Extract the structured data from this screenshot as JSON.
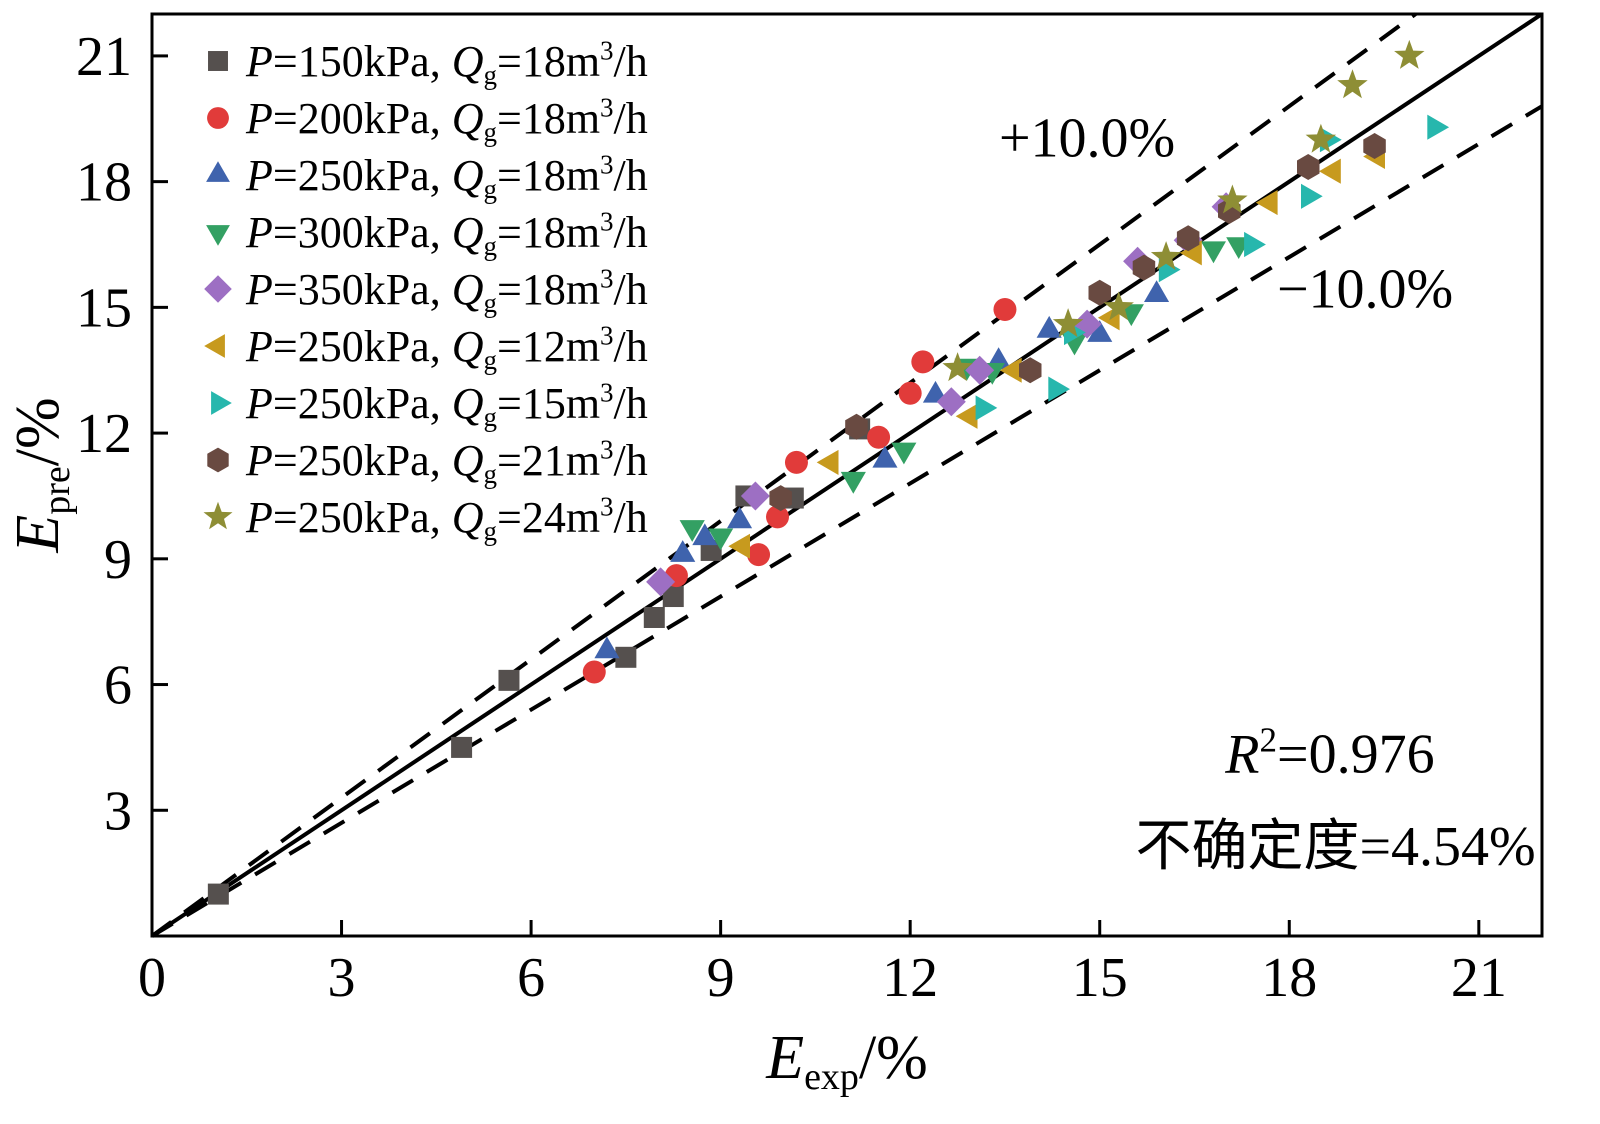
{
  "chart_data": {
    "type": "scatter",
    "title": "",
    "xlabel": {
      "text": "Eexp/%",
      "parts": [
        {
          "t": "E",
          "italic": true
        },
        {
          "t": "exp",
          "sub": true
        },
        {
          "t": "/%"
        }
      ]
    },
    "ylabel": {
      "text": "Epre/%",
      "parts": [
        {
          "t": "E",
          "italic": true
        },
        {
          "t": "pre",
          "sub": true
        },
        {
          "t": "/%"
        }
      ]
    },
    "xlim": [
      0,
      22
    ],
    "ylim": [
      0,
      22
    ],
    "ticks": [
      0,
      3,
      6,
      9,
      12,
      15,
      18,
      21
    ],
    "grid": false,
    "legend_position": "top-left-inside",
    "reference_lines": [
      {
        "label": "y=x",
        "slope": 1.0,
        "style": "solid"
      },
      {
        "label": "+10%",
        "slope": 1.1,
        "style": "dashed"
      },
      {
        "label": "-10%",
        "slope": 0.9,
        "style": "dashed"
      }
    ],
    "annotations": [
      {
        "text": "+10.0%",
        "x": 14.8,
        "y": 18.6,
        "anchor": "middle",
        "parts": [
          {
            "t": "+10.0%"
          }
        ]
      },
      {
        "text": "−10.0%",
        "x": 19.2,
        "y": 15.0,
        "anchor": "middle",
        "parts": [
          {
            "t": "−10.0%"
          }
        ]
      },
      {
        "text": "R2=0.976",
        "x": 20.3,
        "y": 3.9,
        "anchor": "end",
        "parts": [
          {
            "t": "R",
            "italic": true
          },
          {
            "t": "2",
            "super": true
          },
          {
            "t": "=0.976"
          }
        ]
      },
      {
        "text": "不确定度=4.54%",
        "x": 21.9,
        "y": 1.7,
        "anchor": "end",
        "parts": [
          {
            "t": "不确定度=4.54%"
          }
        ]
      }
    ],
    "series": [
      {
        "name": "P=150kPa, Qg=18m³/h",
        "marker": "square",
        "color": "#55504e",
        "label_parts": [
          {
            "t": "P",
            "italic": true
          },
          {
            "t": "=150kPa, "
          },
          {
            "t": "Q",
            "italic": true
          },
          {
            "t": "g",
            "sub": true
          },
          {
            "t": "=18m"
          },
          {
            "t": "3",
            "super": true
          },
          {
            "t": "/h"
          }
        ],
        "points": [
          [
            1.05,
            1.0
          ],
          [
            4.9,
            4.5
          ],
          [
            5.65,
            6.1
          ],
          [
            7.5,
            6.65
          ],
          [
            7.95,
            7.6
          ],
          [
            8.25,
            8.1
          ],
          [
            8.85,
            9.2
          ],
          [
            9.4,
            10.5
          ],
          [
            10.15,
            10.45
          ],
          [
            11.2,
            12.1
          ]
        ]
      },
      {
        "name": "P=200kPa, Qg=18m³/h",
        "marker": "circle",
        "color": "#e13b3a",
        "label_parts": [
          {
            "t": "P",
            "italic": true
          },
          {
            "t": "=200kPa, "
          },
          {
            "t": "Q",
            "italic": true
          },
          {
            "t": "g",
            "sub": true
          },
          {
            "t": "=18m"
          },
          {
            "t": "3",
            "super": true
          },
          {
            "t": "/h"
          }
        ],
        "points": [
          [
            7.0,
            6.3
          ],
          [
            8.3,
            8.6
          ],
          [
            9.6,
            9.1
          ],
          [
            9.9,
            10.0
          ],
          [
            10.2,
            11.3
          ],
          [
            11.5,
            11.9
          ],
          [
            12.0,
            12.95
          ],
          [
            12.2,
            13.7
          ],
          [
            13.5,
            14.95
          ]
        ]
      },
      {
        "name": "P=250kPa, Qg=18m³/h",
        "marker": "triangle-up",
        "color": "#3f63ad",
        "label_parts": [
          {
            "t": "P",
            "italic": true
          },
          {
            "t": "=250kPa, "
          },
          {
            "t": "Q",
            "italic": true
          },
          {
            "t": "g",
            "sub": true
          },
          {
            "t": "=18m"
          },
          {
            "t": "3",
            "super": true
          },
          {
            "t": "/h"
          }
        ],
        "points": [
          [
            7.2,
            6.8
          ],
          [
            8.4,
            9.1
          ],
          [
            8.75,
            9.5
          ],
          [
            9.3,
            9.9
          ],
          [
            11.6,
            11.35
          ],
          [
            12.4,
            12.9
          ],
          [
            13.4,
            13.7
          ],
          [
            14.2,
            14.45
          ],
          [
            15.0,
            14.35
          ],
          [
            15.9,
            15.3
          ]
        ]
      },
      {
        "name": "P=300kPa, Qg=18m³/h",
        "marker": "triangle-down",
        "color": "#33a063",
        "label_parts": [
          {
            "t": "P",
            "italic": true
          },
          {
            "t": "=300kPa, "
          },
          {
            "t": "Q",
            "italic": true
          },
          {
            "t": "g",
            "sub": true
          },
          {
            "t": "=18m"
          },
          {
            "t": "3",
            "super": true
          },
          {
            "t": "/h"
          }
        ],
        "points": [
          [
            8.55,
            9.75
          ],
          [
            9.0,
            9.55
          ],
          [
            11.1,
            10.9
          ],
          [
            11.9,
            11.6
          ],
          [
            12.9,
            13.6
          ],
          [
            13.3,
            13.5
          ],
          [
            14.6,
            14.2
          ],
          [
            15.5,
            14.9
          ],
          [
            16.8,
            16.4
          ],
          [
            17.2,
            16.5
          ]
        ]
      },
      {
        "name": "P=350kPa, Qg=18m³/h",
        "marker": "diamond",
        "color": "#9d6fc3",
        "label_parts": [
          {
            "t": "P",
            "italic": true
          },
          {
            "t": "=350kPa, "
          },
          {
            "t": "Q",
            "italic": true
          },
          {
            "t": "g",
            "sub": true
          },
          {
            "t": "=18m"
          },
          {
            "t": "3",
            "super": true
          },
          {
            "t": "/h"
          }
        ],
        "points": [
          [
            8.05,
            8.45
          ],
          [
            9.55,
            10.5
          ],
          [
            12.65,
            12.75
          ],
          [
            13.1,
            13.5
          ],
          [
            14.8,
            14.6
          ],
          [
            15.6,
            16.1
          ],
          [
            16.4,
            16.6
          ],
          [
            17.0,
            17.4
          ]
        ]
      },
      {
        "name": "P=250kPa, Qg=12m³/h",
        "marker": "triangle-left",
        "color": "#c79a1e",
        "label_parts": [
          {
            "t": "P",
            "italic": true
          },
          {
            "t": "=250kPa, "
          },
          {
            "t": "Q",
            "italic": true
          },
          {
            "t": "g",
            "sub": true
          },
          {
            "t": "=12m"
          },
          {
            "t": "3",
            "super": true
          },
          {
            "t": "/h"
          }
        ],
        "points": [
          [
            9.35,
            9.3
          ],
          [
            10.75,
            11.3
          ],
          [
            12.95,
            12.4
          ],
          [
            13.65,
            13.5
          ],
          [
            15.2,
            14.75
          ],
          [
            16.5,
            16.3
          ],
          [
            17.7,
            17.5
          ],
          [
            18.7,
            18.25
          ],
          [
            19.4,
            18.6
          ]
        ]
      },
      {
        "name": "P=250kPa, Qg=15m³/h",
        "marker": "triangle-right",
        "color": "#27b7ad",
        "label_parts": [
          {
            "t": "P",
            "italic": true
          },
          {
            "t": "=250kPa, "
          },
          {
            "t": "Q",
            "italic": true
          },
          {
            "t": "g",
            "sub": true
          },
          {
            "t": "=15m"
          },
          {
            "t": "3",
            "super": true
          },
          {
            "t": "/h"
          }
        ],
        "points": [
          [
            13.15,
            12.6
          ],
          [
            14.3,
            13.05
          ],
          [
            14.55,
            14.4
          ],
          [
            16.05,
            15.9
          ],
          [
            17.4,
            16.5
          ],
          [
            18.3,
            17.65
          ],
          [
            18.6,
            19.0
          ],
          [
            20.3,
            19.3
          ]
        ]
      },
      {
        "name": "P=250kPa, Qg=21m³/h",
        "marker": "hexagon",
        "color": "#694a41",
        "label_parts": [
          {
            "t": "P",
            "italic": true
          },
          {
            "t": "=250kPa, "
          },
          {
            "t": "Q",
            "italic": true
          },
          {
            "t": "g",
            "sub": true
          },
          {
            "t": "=21m"
          },
          {
            "t": "3",
            "super": true
          },
          {
            "t": "/h"
          }
        ],
        "points": [
          [
            9.95,
            10.45
          ],
          [
            11.15,
            12.15
          ],
          [
            13.9,
            13.5
          ],
          [
            15.0,
            15.35
          ],
          [
            15.7,
            15.95
          ],
          [
            16.4,
            16.65
          ],
          [
            17.05,
            17.3
          ],
          [
            18.3,
            18.35
          ],
          [
            19.35,
            18.85
          ]
        ]
      },
      {
        "name": "P=250kPa, Qg=24m³/h",
        "marker": "star",
        "color": "#8e8e35",
        "label_parts": [
          {
            "t": "P",
            "italic": true
          },
          {
            "t": "=250kPa, "
          },
          {
            "t": "Q",
            "italic": true
          },
          {
            "t": "g",
            "sub": true
          },
          {
            "t": "=24m"
          },
          {
            "t": "3",
            "super": true
          },
          {
            "t": "/h"
          }
        ],
        "points": [
          [
            12.75,
            13.55
          ],
          [
            14.5,
            14.6
          ],
          [
            15.3,
            15.0
          ],
          [
            16.05,
            16.2
          ],
          [
            17.1,
            17.55
          ],
          [
            18.5,
            19.0
          ],
          [
            19.0,
            20.3
          ],
          [
            19.9,
            21.0
          ]
        ]
      }
    ],
    "stats": {
      "r_squared": "0.976",
      "uncertainty_percent": "4.54"
    }
  }
}
